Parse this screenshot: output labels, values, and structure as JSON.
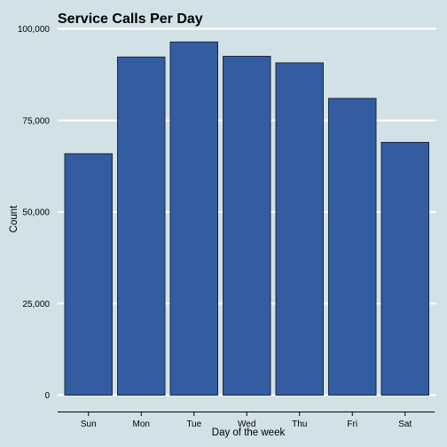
{
  "chart_data": {
    "type": "bar",
    "title": "Service Calls Per Day",
    "xlabel": "Day of the week",
    "ylabel": "Count",
    "categories": [
      "Sun",
      "Mon",
      "Tue",
      "Wed",
      "Thu",
      "Fri",
      "Sat"
    ],
    "values": [
      65900,
      92300,
      96400,
      92500,
      90700,
      81000,
      69000
    ],
    "ylim": [
      0,
      100000
    ],
    "yticks": [
      0,
      25000,
      50000,
      75000,
      100000
    ],
    "ytick_labels": [
      "0",
      "25,000",
      "50,000",
      "75,000",
      "100,000"
    ],
    "grid": "horizontal",
    "colors": {
      "background": "#d2e1e6",
      "bar_fill": "#335ca1",
      "bar_stroke": "#1b2a45",
      "grid": "#ffffff",
      "axis": "#000000"
    }
  }
}
